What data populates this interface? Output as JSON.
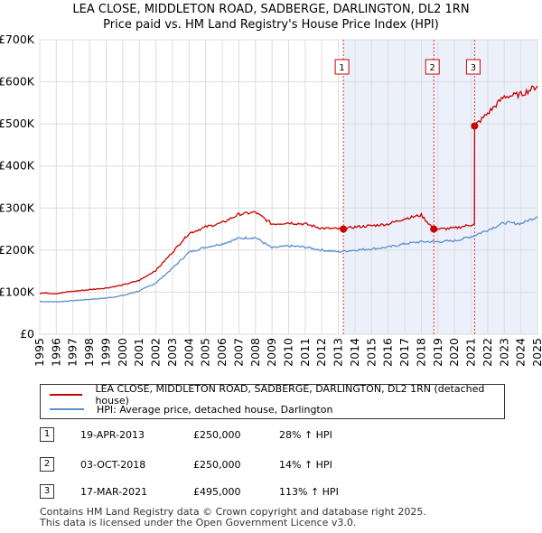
{
  "chart_data": {
    "type": "line",
    "title": "LEA CLOSE, MIDDLETON ROAD, SADBERGE, DARLINGTON, DL2 1RN",
    "subtitle": "Price paid vs. HM Land Registry's House Price Index (HPI)",
    "ylim": [
      0,
      700000
    ],
    "xlim": [
      1995,
      2025
    ],
    "y_ticks": [
      {
        "value": 0,
        "label": "£0"
      },
      {
        "value": 100000,
        "label": "£100K"
      },
      {
        "value": 200000,
        "label": "£200K"
      },
      {
        "value": 300000,
        "label": "£300K"
      },
      {
        "value": 400000,
        "label": "£400K"
      },
      {
        "value": 500000,
        "label": "£500K"
      },
      {
        "value": 600000,
        "label": "£600K"
      },
      {
        "value": 700000,
        "label": "£700K"
      }
    ],
    "x_ticks": [
      "1995",
      "1996",
      "1997",
      "1998",
      "1999",
      "2000",
      "2001",
      "2002",
      "2003",
      "2004",
      "2005",
      "2006",
      "2007",
      "2008",
      "2009",
      "2010",
      "2011",
      "2012",
      "2013",
      "2014",
      "2015",
      "2016",
      "2017",
      "2018",
      "2019",
      "2020",
      "2021",
      "2022",
      "2023",
      "2024",
      "2025"
    ],
    "series": [
      {
        "name": "LEA CLOSE, MIDDLETON ROAD, SADBERGE, DARLINGTON, DL2 1RN (detached house)",
        "color": "#cc0000",
        "points": [
          [
            1995,
            98000
          ],
          [
            1996,
            97000
          ],
          [
            1997,
            102000
          ],
          [
            1998,
            106000
          ],
          [
            1999,
            110000
          ],
          [
            2000,
            117000
          ],
          [
            2001,
            128000
          ],
          [
            2002,
            152000
          ],
          [
            2003,
            195000
          ],
          [
            2004,
            240000
          ],
          [
            2005,
            255000
          ],
          [
            2006,
            265000
          ],
          [
            2007,
            285000
          ],
          [
            2008,
            290000
          ],
          [
            2009,
            262000
          ],
          [
            2010,
            265000
          ],
          [
            2011,
            262000
          ],
          [
            2012,
            252000
          ],
          [
            2013.3,
            250000
          ],
          [
            2014,
            255000
          ],
          [
            2015,
            258000
          ],
          [
            2016,
            262000
          ],
          [
            2017,
            275000
          ],
          [
            2018,
            283000
          ],
          [
            2018.75,
            250000
          ],
          [
            2019,
            250000
          ],
          [
            2020,
            252000
          ],
          [
            2021.2,
            262000
          ],
          [
            2021.21,
            495000
          ],
          [
            2022,
            525000
          ],
          [
            2023,
            565000
          ],
          [
            2024,
            570000
          ],
          [
            2025,
            590000
          ]
        ]
      },
      {
        "name": "HPI: Average price, detached house, Darlington",
        "color": "#5b8fce",
        "points": [
          [
            1995,
            78000
          ],
          [
            1996,
            77000
          ],
          [
            1997,
            80000
          ],
          [
            1998,
            83000
          ],
          [
            1999,
            86000
          ],
          [
            2000,
            92000
          ],
          [
            2001,
            103000
          ],
          [
            2002,
            122000
          ],
          [
            2003,
            157000
          ],
          [
            2004,
            195000
          ],
          [
            2005,
            207000
          ],
          [
            2006,
            215000
          ],
          [
            2007,
            228000
          ],
          [
            2008,
            230000
          ],
          [
            2009,
            205000
          ],
          [
            2010,
            210000
          ],
          [
            2011,
            207000
          ],
          [
            2012,
            200000
          ],
          [
            2013,
            196000
          ],
          [
            2014,
            200000
          ],
          [
            2015,
            203000
          ],
          [
            2016,
            207000
          ],
          [
            2017,
            215000
          ],
          [
            2018,
            220000
          ],
          [
            2019,
            220000
          ],
          [
            2020,
            222000
          ],
          [
            2021,
            232000
          ],
          [
            2022,
            248000
          ],
          [
            2023,
            265000
          ],
          [
            2024,
            263000
          ],
          [
            2025,
            280000
          ]
        ]
      }
    ],
    "sales": [
      {
        "num": "1",
        "x": 2013.3,
        "value": 250000
      },
      {
        "num": "2",
        "x": 2018.75,
        "value": 250000
      },
      {
        "num": "3",
        "x": 2021.21,
        "value": 495000
      }
    ]
  },
  "legend": {
    "entry1": "LEA CLOSE, MIDDLETON ROAD, SADBERGE, DARLINGTON, DL2 1RN (detached house)",
    "entry2": "HPI: Average price, detached house, Darlington"
  },
  "sales_table": [
    {
      "num": "1",
      "date": "19-APR-2013",
      "price": "£250,000",
      "hpi": "28% ↑ HPI"
    },
    {
      "num": "2",
      "date": "03-OCT-2018",
      "price": "£250,000",
      "hpi": "14% ↑ HPI"
    },
    {
      "num": "3",
      "date": "17-MAR-2021",
      "price": "£495,000",
      "hpi": "113% ↑ HPI"
    }
  ],
  "footer": {
    "line1": "Contains HM Land Registry data © Crown copyright and database right 2025.",
    "line2": "This data is licensed under the Open Government Licence v3.0."
  }
}
